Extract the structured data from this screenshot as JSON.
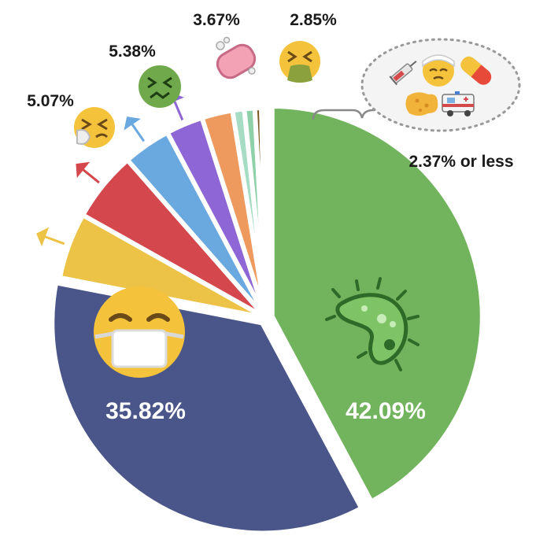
{
  "chart_data": {
    "type": "pie",
    "title": "",
    "slices": [
      {
        "value": 42.09,
        "color": "#72b35d",
        "label": "42.09%",
        "icon": "bacteria-icon"
      },
      {
        "value": 35.82,
        "color": "#4a5589",
        "label": "35.82%",
        "icon": "face-with-medical-mask-icon"
      },
      {
        "value": 5.07,
        "color": "#ecc347",
        "label": "5.07%",
        "icon": "sneezing-face-icon"
      },
      {
        "value": 5.38,
        "color": "#d4474d",
        "label": "5.38%",
        "icon": "nauseated-face-icon"
      },
      {
        "value": 3.67,
        "color": "#6aa9e0",
        "label": "3.67%",
        "icon": "soap-icon"
      },
      {
        "value": 2.85,
        "color": "#8f66d6",
        "label": "2.85%",
        "icon": "vomiting-face-icon"
      },
      {
        "value": 2.37,
        "color": "#ee9a5f",
        "label": "",
        "icon": ""
      },
      {
        "value": 0.9,
        "color": "#a6dcc4",
        "label": "",
        "icon": ""
      },
      {
        "value": 0.8,
        "color": "#8ed0a8",
        "label": "",
        "icon": ""
      },
      {
        "value": 0.5,
        "color": "#7a5a20",
        "label": "",
        "icon": ""
      },
      {
        "value": 0.35,
        "color": "#3d5f8f",
        "label": "",
        "icon": ""
      }
    ],
    "group_label": "2.37% or less",
    "group_icons": [
      "syringe-icon",
      "face-with-head-bandage-icon",
      "pill-icon",
      "sponge-icon",
      "ambulance-icon"
    ],
    "legend": "none"
  }
}
